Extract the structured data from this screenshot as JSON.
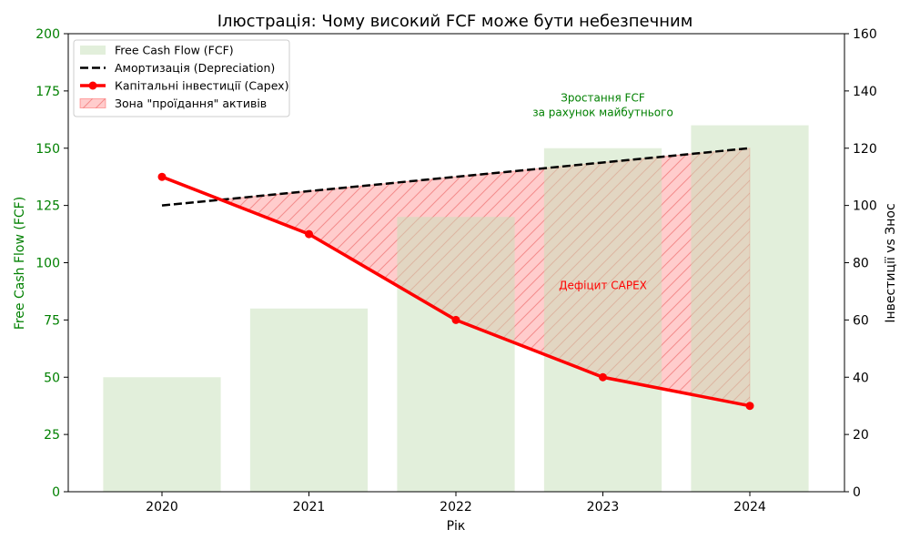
{
  "chart_data": {
    "type": "bar+line",
    "title": "Ілюстрація: Чому високий FCF може бути небезпечним",
    "xlabel": "Рік",
    "ylabel_left": "Free Cash Flow (FCF)",
    "ylabel_right": "Інвестиції vs Знос",
    "categories": [
      2020,
      2021,
      2022,
      2023,
      2024
    ],
    "ylim_left": [
      0,
      200
    ],
    "ylim_right": [
      0,
      160
    ],
    "yticks_left": [
      0,
      25,
      50,
      75,
      100,
      125,
      150,
      175,
      200
    ],
    "yticks_right": [
      0,
      20,
      40,
      60,
      80,
      100,
      120,
      140,
      160
    ],
    "grid": false,
    "legend_placement": "top-left",
    "series": [
      {
        "name": "Free Cash Flow (FCF)",
        "type": "bar",
        "axis": "left",
        "values": [
          50,
          80,
          120,
          150,
          160
        ],
        "color": "#c5dfb8"
      },
      {
        "name": "Амортизація (Depreciation)",
        "type": "line",
        "style": "dashed",
        "axis": "right",
        "values": [
          100,
          105,
          110,
          115,
          120
        ],
        "color": "#000000"
      },
      {
        "name": "Капітальні інвестиції (Capex)",
        "type": "line",
        "marker": "circle",
        "axis": "right",
        "values": [
          110,
          90,
          60,
          40,
          30
        ],
        "color": "#ff0000"
      },
      {
        "name": "Зона \"проїдання\" активів",
        "type": "fill_between",
        "between": [
          "Амортизація (Depreciation)",
          "Капітальні інвестиції (Capex)"
        ],
        "color": "#ff0000"
      }
    ],
    "annotations": [
      {
        "text": [
          "Зростання FCF",
          "за рахунок майбутнього"
        ],
        "color": "#008000",
        "x": 2023,
        "y_right": 135
      },
      {
        "text": [
          "Дефіцит CAPEX"
        ],
        "color": "#ff0000",
        "x": 2023,
        "y_right": 72
      }
    ]
  }
}
